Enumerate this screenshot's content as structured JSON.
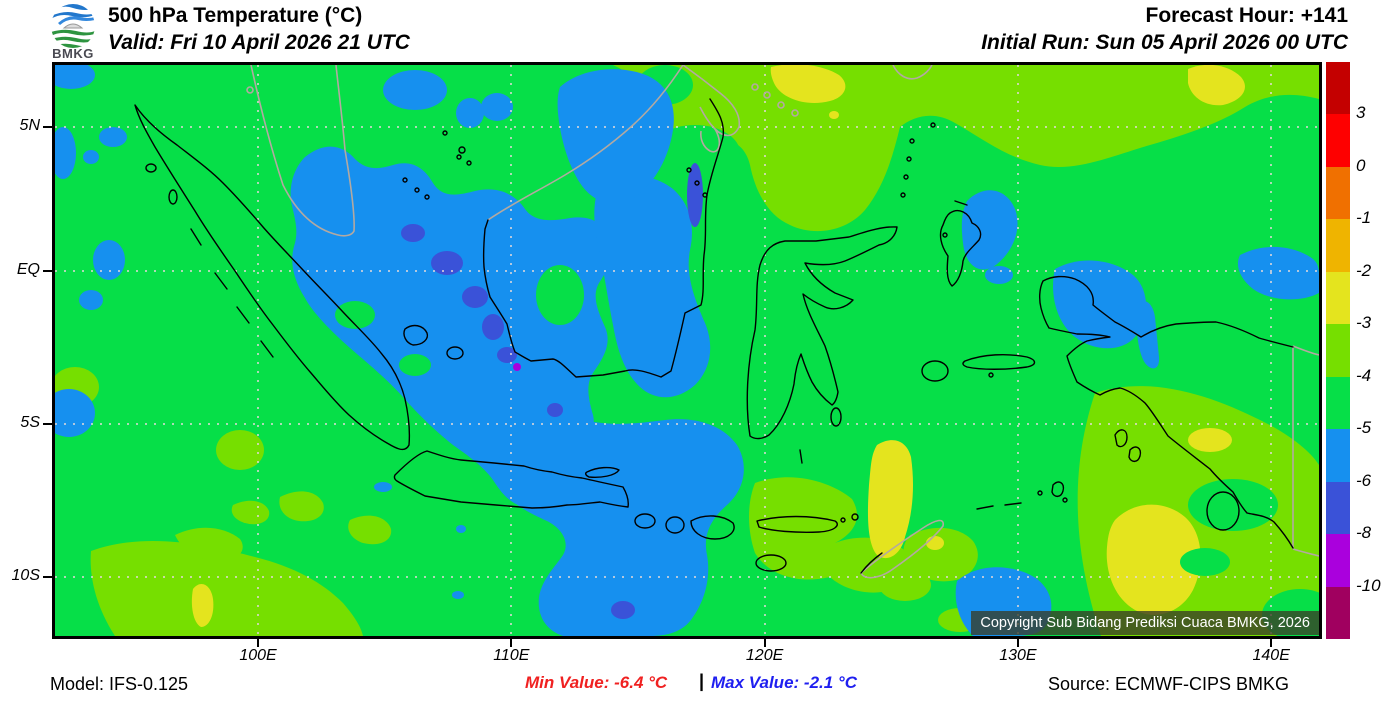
{
  "header": {
    "logo_text": "BMKG",
    "title": "500 hPa Temperature (°C)",
    "valid": "Valid: Fri 10 April 2026 21 UTC",
    "forecast_hour": "Forecast Hour: +141",
    "initial_run": "Initial Run: Sun 05 April 2026 00 UTC"
  },
  "map": {
    "copyright": "Copyright Sub Bidang Prediksi Cuaca BMKG, 2026",
    "lat_ticks": [
      {
        "label": "5N",
        "lat": 5
      },
      {
        "label": "EQ",
        "lat": 0
      },
      {
        "label": "5S",
        "lat": -5
      },
      {
        "label": "10S",
        "lat": -10
      }
    ],
    "lon_ticks": [
      {
        "label": "100E",
        "lon": 100
      },
      {
        "label": "110E",
        "lon": 110
      },
      {
        "label": "120E",
        "lon": 120
      },
      {
        "label": "130E",
        "lon": 130
      },
      {
        "label": "140E",
        "lon": 140
      }
    ]
  },
  "colorbar": {
    "units": "°C",
    "segment_colors": [
      "#C40000",
      "#FE0000",
      "#F07000",
      "#EFB400",
      "#E4E41E",
      "#76DF00",
      "#06DF48",
      "#1690EF",
      "#3A52D8",
      "#AA00DD",
      "#A0005F"
    ],
    "boundary_labels": [
      "3",
      "0",
      "-1",
      "-2",
      "-3",
      "-4",
      "-5",
      "-6",
      "-8",
      "-10"
    ]
  },
  "footer": {
    "model": "Model: IFS-0.125",
    "min_value": "Min Value: -6.4 °C",
    "min_color": "#F02121",
    "separator": "|",
    "max_value": "Max Value: -2.1 °C",
    "max_color": "#1F1FF0",
    "source": "Source: ECMWF-CIPS BMKG"
  }
}
